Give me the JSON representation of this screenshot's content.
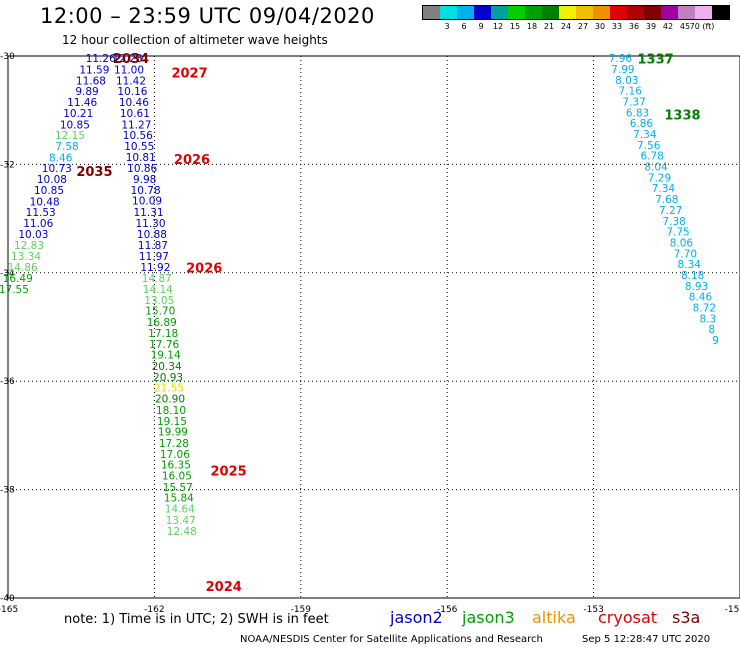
{
  "header": {
    "title": "12:00 – 23:59 UTC 09/04/2020",
    "subtitle": "12 hour collection of altimeter wave heights"
  },
  "legend": {
    "colors": [
      "#808080",
      "#00e0e0",
      "#00b0f0",
      "#0000d0",
      "#00a0a0",
      "#00d000",
      "#00a000",
      "#008000",
      "#f0f000",
      "#f0c000",
      "#f09000",
      "#e00000",
      "#b00000",
      "#800000",
      "#a000a0",
      "#c080c0",
      "#f0b0f0",
      "#000000"
    ],
    "labels": [
      "3",
      "6",
      "9",
      "12",
      "15",
      "18",
      "21",
      "24",
      "27",
      "30",
      "33",
      "36",
      "39",
      "42",
      "45",
      "70 (ft)"
    ]
  },
  "axes": {
    "x_ticks": [
      {
        "lon": -165,
        "label": "-165"
      },
      {
        "lon": -162,
        "label": "-162"
      },
      {
        "lon": -159,
        "label": "-159"
      },
      {
        "lon": -156,
        "label": "-156"
      },
      {
        "lon": -153,
        "label": "-153"
      },
      {
        "lon": -150,
        "label": "-15"
      }
    ],
    "y_ticks": [
      {
        "lat": -30,
        "label": "-30"
      },
      {
        "lat": -32,
        "label": "-32"
      },
      {
        "lat": -34,
        "label": "-34"
      },
      {
        "lat": -36,
        "label": "-36"
      },
      {
        "lat": -38,
        "label": "-38"
      },
      {
        "lat": -40,
        "label": "-40"
      }
    ]
  },
  "time_labels": [
    {
      "text": "2034",
      "lon": -162.85,
      "lat": -30.04,
      "color": "#800000"
    },
    {
      "text": "2027",
      "lon": -161.65,
      "lat": -30.3,
      "color": "#e00000"
    },
    {
      "text": "2026",
      "lon": -161.6,
      "lat": -31.9,
      "color": "#e00000"
    },
    {
      "text": "2035",
      "lon": -163.6,
      "lat": -32.12,
      "color": "#800000"
    },
    {
      "text": "2026",
      "lon": -161.35,
      "lat": -33.9,
      "color": "#e00000"
    },
    {
      "text": "2025",
      "lon": -160.85,
      "lat": -37.65,
      "color": "#e00000"
    },
    {
      "text": "2024",
      "lon": -160.95,
      "lat": -39.78,
      "color": "#e00000"
    },
    {
      "text": "1337",
      "lon": -152.1,
      "lat": -30.05,
      "color": "#008000"
    },
    {
      "text": "1338",
      "lon": -151.55,
      "lat": -31.08,
      "color": "#008000"
    }
  ],
  "tracks": [
    {
      "name": "track-a",
      "points": [
        {
          "v": "11.26",
          "lon": -163.1,
          "lat": -30.04,
          "color": "#0000d0"
        },
        {
          "v": "11.59",
          "lon": -163.23,
          "lat": -30.25,
          "color": "#0000d0"
        },
        {
          "v": "11.68",
          "lon": -163.3,
          "lat": -30.45,
          "color": "#0000d0"
        },
        {
          "v": "9.89",
          "lon": -163.38,
          "lat": -30.65,
          "color": "#0000d0"
        },
        {
          "v": "11.46",
          "lon": -163.48,
          "lat": -30.85,
          "color": "#0000d0"
        },
        {
          "v": "10.21",
          "lon": -163.56,
          "lat": -31.05,
          "color": "#0000d0"
        },
        {
          "v": "10.85",
          "lon": -163.63,
          "lat": -31.26,
          "color": "#0000d0"
        },
        {
          "v": "12.15",
          "lon": -163.73,
          "lat": -31.46,
          "color": "#60d060"
        },
        {
          "v": "7.58",
          "lon": -163.79,
          "lat": -31.66,
          "color": "#00b0f0"
        },
        {
          "v": "8.46",
          "lon": -163.92,
          "lat": -31.87,
          "color": "#00b0f0"
        },
        {
          "v": "10.73",
          "lon": -164.0,
          "lat": -32.07,
          "color": "#0000d0"
        },
        {
          "v": "10.08",
          "lon": -164.1,
          "lat": -32.27,
          "color": "#0000d0"
        },
        {
          "v": "10.85",
          "lon": -164.16,
          "lat": -32.47,
          "color": "#0000d0"
        },
        {
          "v": "10.48",
          "lon": -164.25,
          "lat": -32.68,
          "color": "#0000d0"
        },
        {
          "v": "11.53",
          "lon": -164.33,
          "lat": -32.88,
          "color": "#0000d0"
        },
        {
          "v": "11.06",
          "lon": -164.38,
          "lat": -33.08,
          "color": "#0000d0"
        },
        {
          "v": "10.03",
          "lon": -164.48,
          "lat": -33.28,
          "color": "#0000d0"
        },
        {
          "v": "12.83",
          "lon": -164.57,
          "lat": -33.49,
          "color": "#60d060"
        },
        {
          "v": "13.34",
          "lon": -164.63,
          "lat": -33.69,
          "color": "#60d060"
        },
        {
          "v": "14.86",
          "lon": -164.7,
          "lat": -33.89,
          "color": "#60d060"
        },
        {
          "v": "16.49",
          "lon": -164.8,
          "lat": -34.1,
          "color": "#00a000"
        },
        {
          "v": "17.55",
          "lon": -164.88,
          "lat": -34.3,
          "color": "#00a000"
        }
      ]
    },
    {
      "name": "track-b",
      "points": [
        {
          "v": "12.23",
          "lon": -162.55,
          "lat": -30.04,
          "color": "#0000d0"
        },
        {
          "v": "11.00",
          "lon": -162.52,
          "lat": -30.25,
          "color": "#0000d0"
        },
        {
          "v": "11.42",
          "lon": -162.48,
          "lat": -30.45,
          "color": "#0000d0"
        },
        {
          "v": "10.16",
          "lon": -162.45,
          "lat": -30.65,
          "color": "#0000d0"
        },
        {
          "v": "10.46",
          "lon": -162.42,
          "lat": -30.85,
          "color": "#0000d0"
        },
        {
          "v": "10.61",
          "lon": -162.4,
          "lat": -31.05,
          "color": "#0000d0"
        },
        {
          "v": "11.27",
          "lon": -162.37,
          "lat": -31.26,
          "color": "#0000d0"
        },
        {
          "v": "10.56",
          "lon": -162.34,
          "lat": -31.46,
          "color": "#0000d0"
        },
        {
          "v": "10.55",
          "lon": -162.31,
          "lat": -31.66,
          "color": "#0000d0"
        },
        {
          "v": "10.81",
          "lon": -162.28,
          "lat": -31.86,
          "color": "#0000d0"
        },
        {
          "v": "10.86",
          "lon": -162.25,
          "lat": -32.07,
          "color": "#0000d0"
        },
        {
          "v": "9.98",
          "lon": -162.2,
          "lat": -32.27,
          "color": "#0000d0"
        },
        {
          "v": "10.78",
          "lon": -162.18,
          "lat": -32.47,
          "color": "#0000d0"
        },
        {
          "v": "10.09",
          "lon": -162.15,
          "lat": -32.67,
          "color": "#0000d0"
        },
        {
          "v": "11.31",
          "lon": -162.12,
          "lat": -32.88,
          "color": "#0000d0"
        },
        {
          "v": "11.30",
          "lon": -162.08,
          "lat": -33.08,
          "color": "#0000d0"
        },
        {
          "v": "10.88",
          "lon": -162.05,
          "lat": -33.28,
          "color": "#0000d0"
        },
        {
          "v": "11.87",
          "lon": -162.03,
          "lat": -33.49,
          "color": "#0000d0"
        },
        {
          "v": "11.97",
          "lon": -162.01,
          "lat": -33.69,
          "color": "#0000d0"
        },
        {
          "v": "11.92",
          "lon": -161.98,
          "lat": -33.89,
          "color": "#0000d0"
        },
        {
          "v": "14.87",
          "lon": -161.95,
          "lat": -34.1,
          "color": "#60d060"
        },
        {
          "v": "14.14",
          "lon": -161.93,
          "lat": -34.3,
          "color": "#60d060"
        },
        {
          "v": "13.05",
          "lon": -161.9,
          "lat": -34.5,
          "color": "#60d060"
        },
        {
          "v": "15.70",
          "lon": -161.88,
          "lat": -34.7,
          "color": "#00a000"
        },
        {
          "v": "16.89",
          "lon": -161.85,
          "lat": -34.91,
          "color": "#00a000"
        },
        {
          "v": "17.18",
          "lon": -161.82,
          "lat": -35.11,
          "color": "#00a000"
        },
        {
          "v": "17.76",
          "lon": -161.8,
          "lat": -35.31,
          "color": "#00a000"
        },
        {
          "v": "19.14",
          "lon": -161.77,
          "lat": -35.51,
          "color": "#00a000"
        },
        {
          "v": "20.34",
          "lon": -161.75,
          "lat": -35.72,
          "color": "#008000"
        },
        {
          "v": "20.93",
          "lon": -161.72,
          "lat": -35.92,
          "color": "#008000"
        },
        {
          "v": "21.55",
          "lon": -161.7,
          "lat": -36.12,
          "color": "#e0e000"
        },
        {
          "v": "20.90",
          "lon": -161.68,
          "lat": -36.32,
          "color": "#008000"
        },
        {
          "v": "18.10",
          "lon": -161.66,
          "lat": -36.53,
          "color": "#00a000"
        },
        {
          "v": "19.15",
          "lon": -161.64,
          "lat": -36.73,
          "color": "#00a000"
        },
        {
          "v": "19.99",
          "lon": -161.62,
          "lat": -36.93,
          "color": "#00a000"
        },
        {
          "v": "17.28",
          "lon": -161.6,
          "lat": -37.14,
          "color": "#00a000"
        },
        {
          "v": "17.06",
          "lon": -161.58,
          "lat": -37.34,
          "color": "#00a000"
        },
        {
          "v": "16.35",
          "lon": -161.56,
          "lat": -37.54,
          "color": "#00a000"
        },
        {
          "v": "16.05",
          "lon": -161.54,
          "lat": -37.74,
          "color": "#00a000"
        },
        {
          "v": "15.57",
          "lon": -161.52,
          "lat": -37.95,
          "color": "#00a000"
        },
        {
          "v": "15.84",
          "lon": -161.5,
          "lat": -38.15,
          "color": "#00a000"
        },
        {
          "v": "14.64",
          "lon": -161.48,
          "lat": -38.35,
          "color": "#60d060"
        },
        {
          "v": "13.47",
          "lon": -161.46,
          "lat": -38.56,
          "color": "#60d060"
        },
        {
          "v": "12.48",
          "lon": -161.44,
          "lat": -38.76,
          "color": "#60d060"
        }
      ]
    },
    {
      "name": "track-c",
      "points": [
        {
          "v": "7.96",
          "lon": -152.45,
          "lat": -30.04,
          "color": "#00b0f0"
        },
        {
          "v": "7.99",
          "lon": -152.4,
          "lat": -30.24,
          "color": "#00b0f0"
        },
        {
          "v": "8.03",
          "lon": -152.32,
          "lat": -30.44,
          "color": "#00b0f0"
        },
        {
          "v": "7.16",
          "lon": -152.25,
          "lat": -30.64,
          "color": "#00b0f0"
        },
        {
          "v": "7.37",
          "lon": -152.17,
          "lat": -30.84,
          "color": "#00b0f0"
        },
        {
          "v": "6.83",
          "lon": -152.1,
          "lat": -31.04,
          "color": "#00b0f0"
        },
        {
          "v": "6.86",
          "lon": -152.02,
          "lat": -31.24,
          "color": "#00b0f0"
        },
        {
          "v": "7.34",
          "lon": -151.95,
          "lat": -31.44,
          "color": "#00b0f0"
        },
        {
          "v": "7.56",
          "lon": -151.87,
          "lat": -31.64,
          "color": "#00b0f0"
        },
        {
          "v": "6.78",
          "lon": -151.8,
          "lat": -31.84,
          "color": "#00b0f0"
        },
        {
          "v": "8.04",
          "lon": -151.72,
          "lat": -32.04,
          "color": "#00b0f0"
        },
        {
          "v": "7.29",
          "lon": -151.65,
          "lat": -32.24,
          "color": "#00b0f0"
        },
        {
          "v": "7.34",
          "lon": -151.57,
          "lat": -32.44,
          "color": "#00b0f0"
        },
        {
          "v": "7.68",
          "lon": -151.5,
          "lat": -32.64,
          "color": "#00b0f0"
        },
        {
          "v": "7.27",
          "lon": -151.42,
          "lat": -32.84,
          "color": "#00b0f0"
        },
        {
          "v": "7.38",
          "lon": -151.35,
          "lat": -33.04,
          "color": "#00b0f0"
        },
        {
          "v": "7.75",
          "lon": -151.27,
          "lat": -33.24,
          "color": "#00b0f0"
        },
        {
          "v": "8.06",
          "lon": -151.2,
          "lat": -33.44,
          "color": "#00b0f0"
        },
        {
          "v": "7.70",
          "lon": -151.12,
          "lat": -33.64,
          "color": "#00b0f0"
        },
        {
          "v": "8.34",
          "lon": -151.04,
          "lat": -33.84,
          "color": "#00b0f0"
        },
        {
          "v": "8.18",
          "lon": -150.97,
          "lat": -34.04,
          "color": "#00b0f0"
        },
        {
          "v": "8.93",
          "lon": -150.89,
          "lat": -34.24,
          "color": "#00b0f0"
        },
        {
          "v": "8.46",
          "lon": -150.81,
          "lat": -34.44,
          "color": "#00b0f0"
        },
        {
          "v": "8.72",
          "lon": -150.73,
          "lat": -34.64,
          "color": "#00b0f0"
        },
        {
          "v": "8.3",
          "lon": -150.66,
          "lat": -34.84,
          "color": "#00b0f0"
        },
        {
          "v": "8",
          "lon": -150.58,
          "lat": -35.04,
          "color": "#00b0f0"
        },
        {
          "v": "9",
          "lon": -150.5,
          "lat": -35.24,
          "color": "#00b0f0"
        }
      ]
    }
  ],
  "footer": {
    "note": "note:  1) Time is in UTC;  2) SWH is in feet",
    "satellites": [
      {
        "name": "jason2",
        "color": "#0000d0"
      },
      {
        "name": "jason3",
        "color": "#00a000"
      },
      {
        "name": "altika",
        "color": "#f09000"
      },
      {
        "name": "cryosat",
        "color": "#e00000"
      },
      {
        "name": "s3a",
        "color": "#800000"
      }
    ],
    "credit": "NOAA/NESDIS Center for Satellite Applications and Research",
    "timestamp": "Sep  5 12:28:47 UTC 2020"
  }
}
